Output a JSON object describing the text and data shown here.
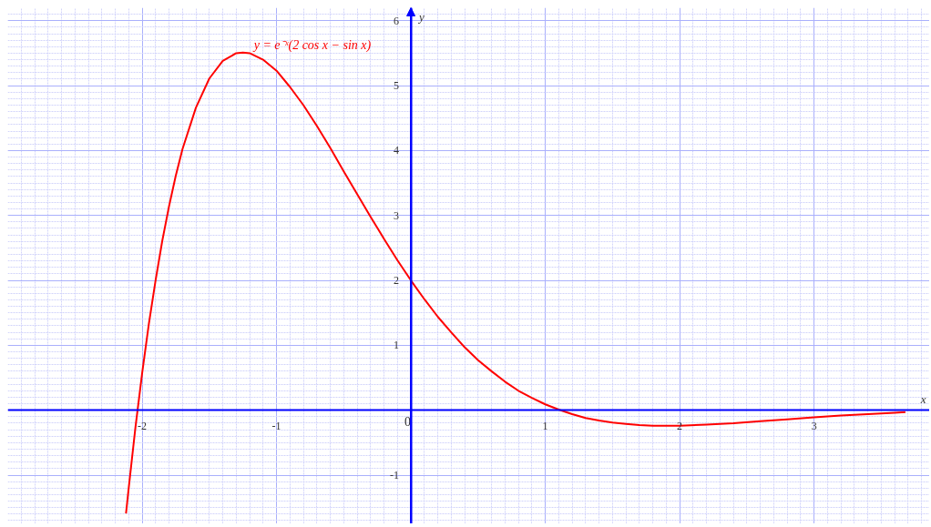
{
  "chart_data": {
    "type": "line",
    "xlabel": "x",
    "ylabel": "y",
    "x": [
      -2.12,
      -2.1,
      -2.05,
      -2.0,
      -1.95,
      -1.9,
      -1.85,
      -1.8,
      -1.75,
      -1.7,
      -1.6,
      -1.5,
      -1.4,
      -1.3,
      -1.25,
      -1.2,
      -1.1,
      -1.0,
      -0.9,
      -0.8,
      -0.7,
      -0.6,
      -0.5,
      -0.4,
      -0.3,
      -0.2,
      -0.1,
      0,
      0.1,
      0.2,
      0.3,
      0.4,
      0.5,
      0.6,
      0.7,
      0.8,
      0.9,
      1.0,
      1.1,
      1.2,
      1.3,
      1.4,
      1.5,
      1.6,
      1.7,
      1.8,
      1.9,
      2.0,
      2.2,
      2.4,
      2.6,
      2.8,
      3.0,
      3.2,
      3.4,
      3.6,
      3.68
    ],
    "series": [
      {
        "name": "y = e⁻ˣ(2 cos x − sin x)",
        "color": "#ff0000",
        "values": [
          -1.59,
          -1.2,
          -0.27,
          0.57,
          1.33,
          2.0,
          2.61,
          3.14,
          3.61,
          4.02,
          4.66,
          5.11,
          5.38,
          5.5,
          5.51,
          5.5,
          5.4,
          5.23,
          4.98,
          4.7,
          4.38,
          4.04,
          3.68,
          3.33,
          2.98,
          2.64,
          2.31,
          2.0,
          1.71,
          1.44,
          1.2,
          0.97,
          0.77,
          0.6,
          0.44,
          0.3,
          0.19,
          0.09,
          0.01,
          -0.06,
          -0.12,
          -0.16,
          -0.19,
          -0.21,
          -0.23,
          -0.24,
          -0.24,
          -0.24,
          -0.22,
          -0.2,
          -0.17,
          -0.14,
          -0.11,
          -0.08,
          -0.06,
          -0.04,
          -0.03
        ]
      }
    ],
    "xlim": [
      -3,
      3.86
    ],
    "ylim": [
      -1.75,
      6.2
    ],
    "xticks": [
      -2,
      -1,
      0,
      1,
      2,
      3
    ],
    "yticks": [
      -1,
      1,
      2,
      3,
      4,
      5,
      6
    ],
    "grid": true,
    "line_style": "solid"
  }
}
